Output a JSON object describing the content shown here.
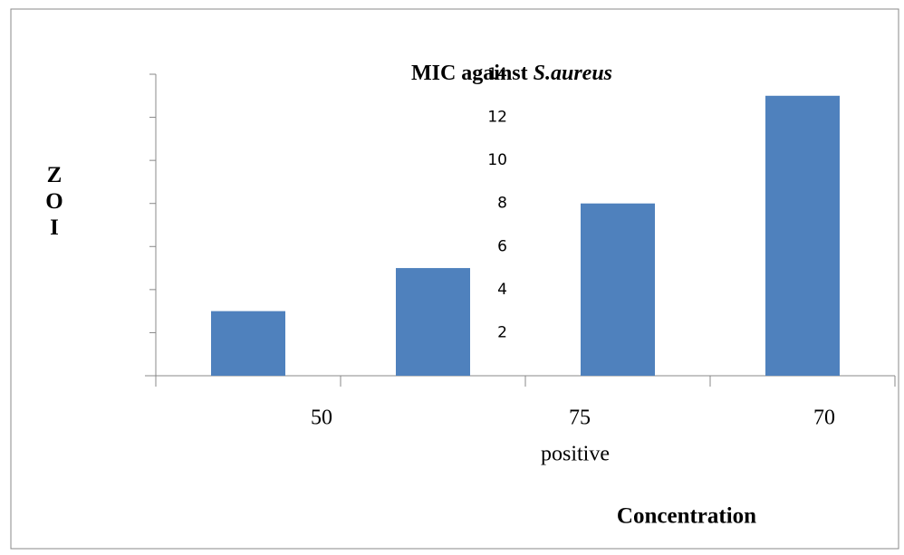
{
  "chart_data": {
    "type": "bar",
    "title": [
      "MIC against ",
      "S.aureus"
    ],
    "y_label": "ZOI",
    "x_label": "Concentration",
    "categories": [
      "50",
      "75",
      "70",
      "positive"
    ],
    "values": [
      3,
      5,
      8,
      13
    ],
    "color": "#4f81bd",
    "ylim": [
      0,
      14
    ],
    "yticks": [
      2,
      4,
      6,
      8,
      10,
      12,
      14
    ]
  }
}
